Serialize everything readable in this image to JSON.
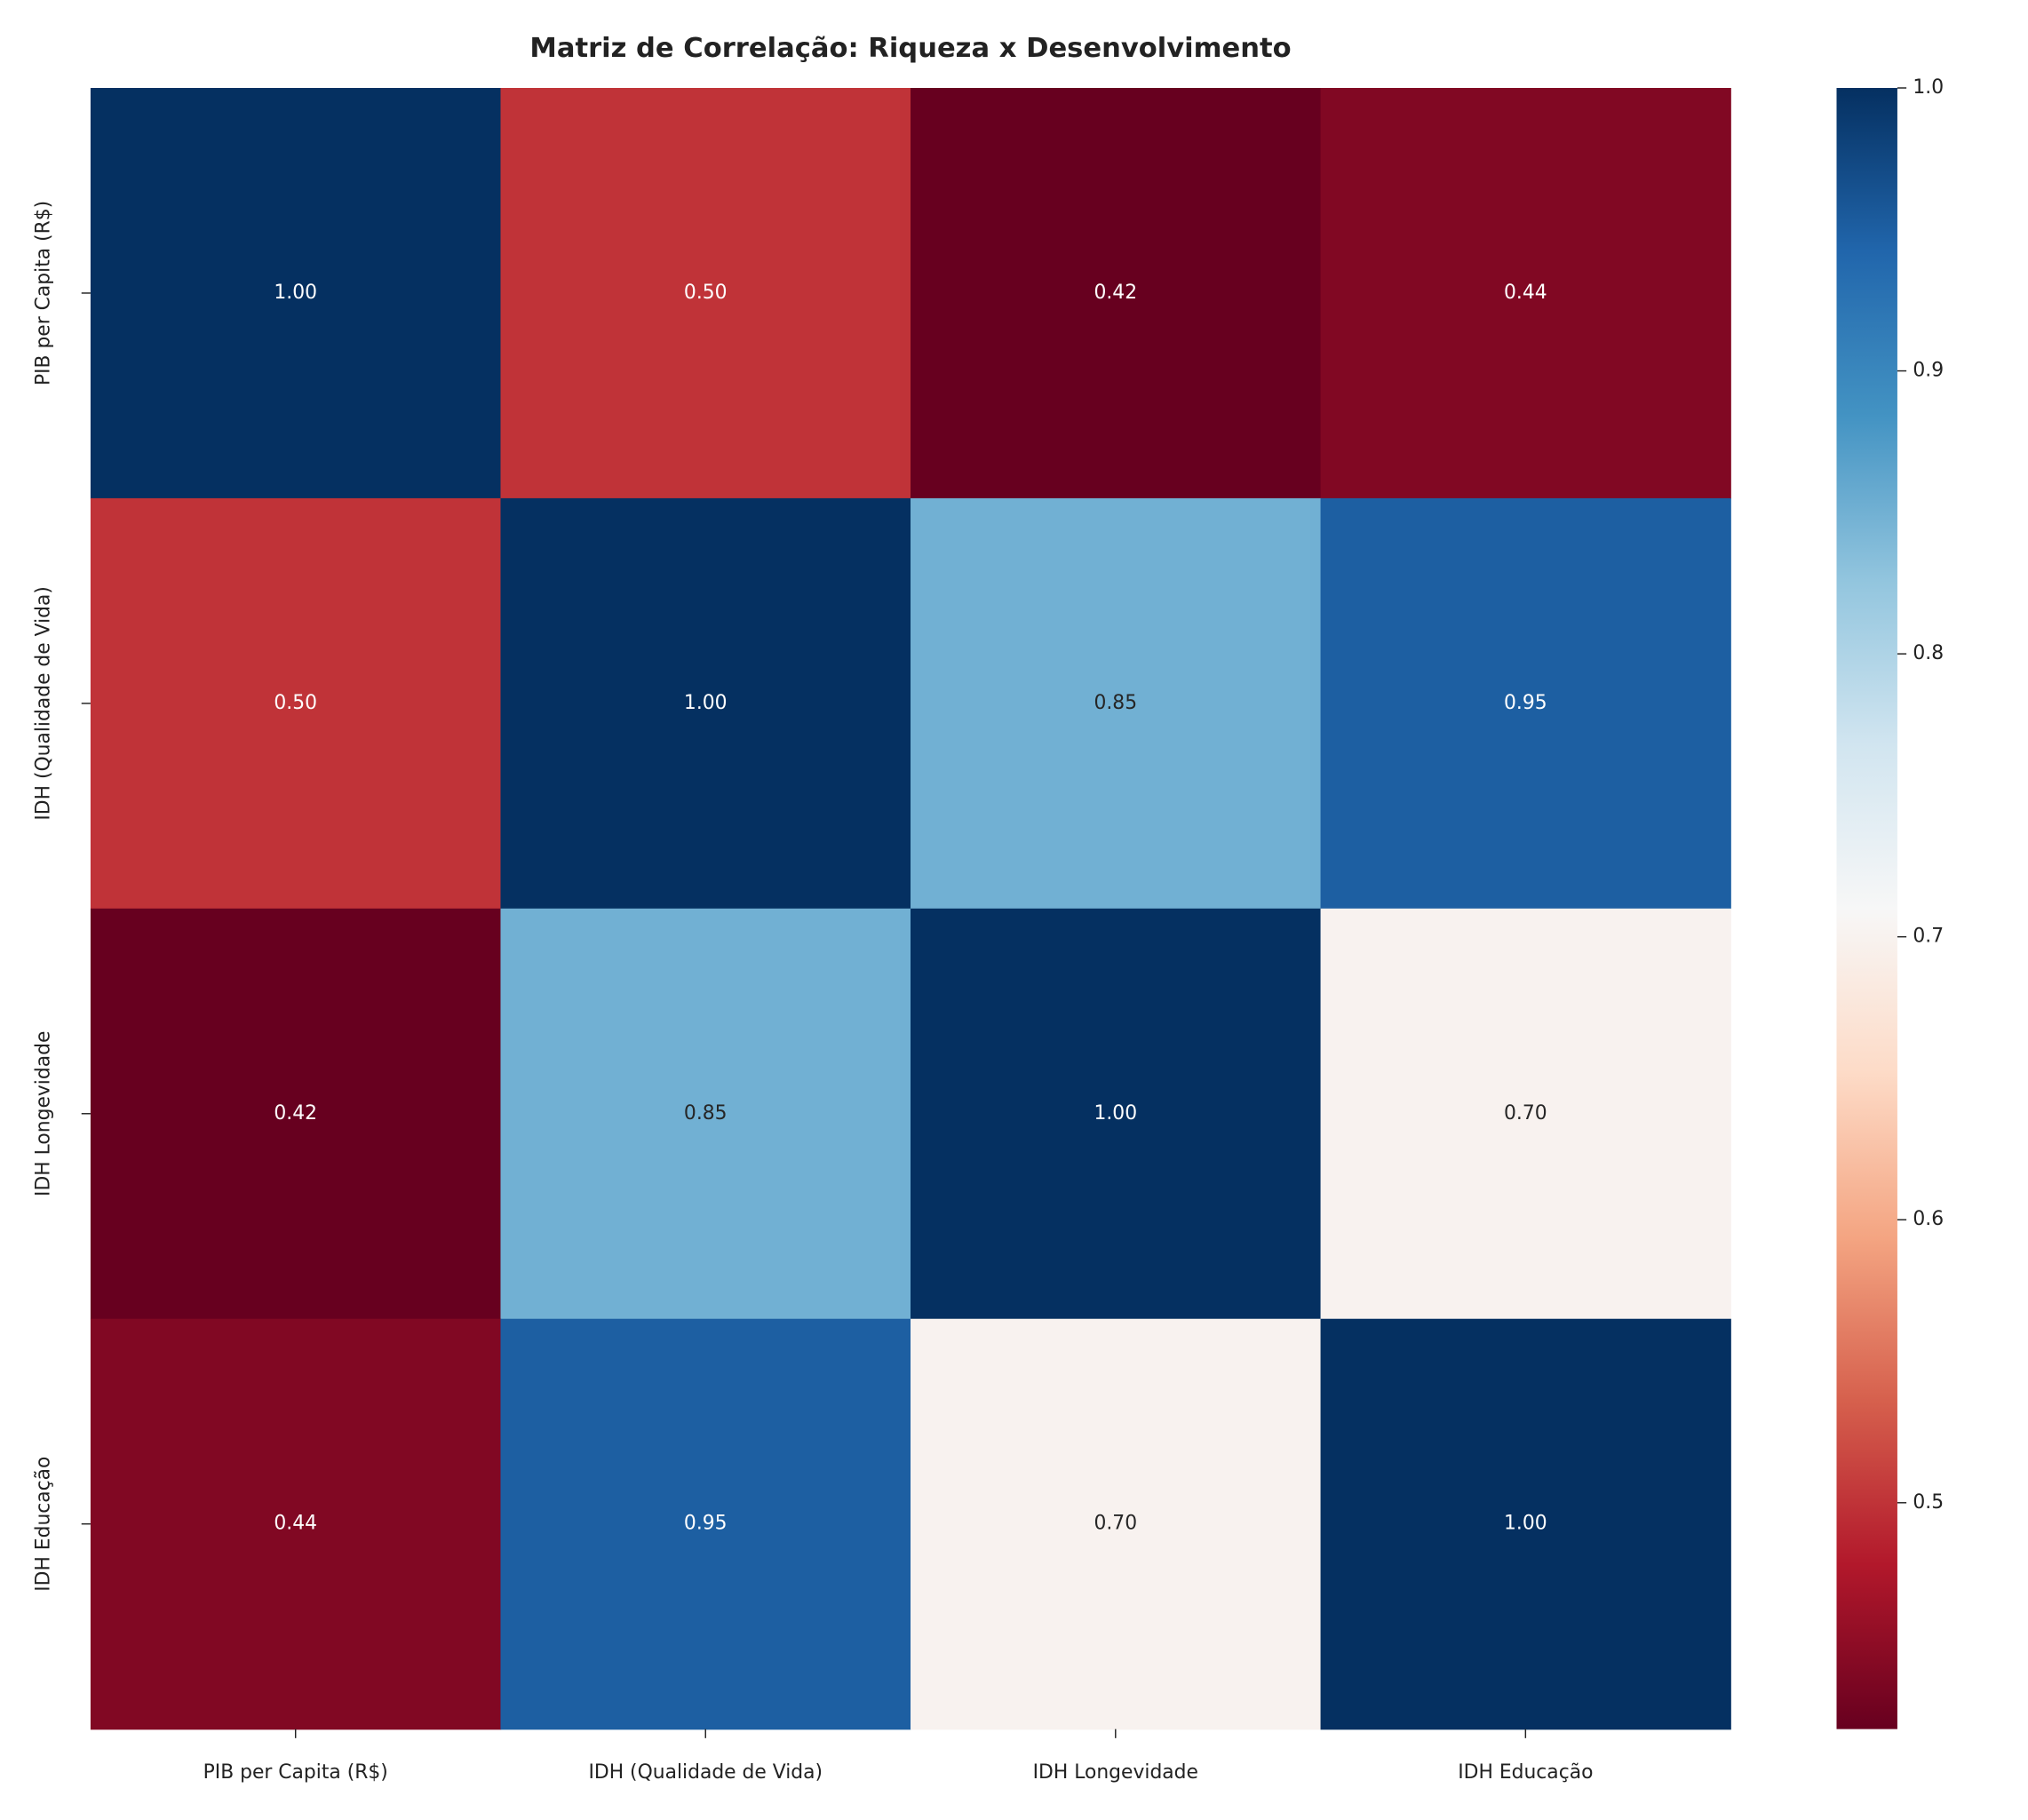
{
  "chart_data": {
    "type": "heatmap",
    "title": "Matriz de Correlação: Riqueza x Desenvolvimento",
    "x_categories": [
      "PIB per Capita (R$)",
      "IDH (Qualidade de Vida)",
      "IDH Longevidade",
      "IDH Educação"
    ],
    "y_categories": [
      "PIB per Capita (R$)",
      "IDH (Qualidade de Vida)",
      "IDH Longevidade",
      "IDH Educação"
    ],
    "values": [
      [
        1,
        0.5,
        0.42,
        0.44
      ],
      [
        0.5,
        1,
        0.85,
        0.95
      ],
      [
        0.42,
        0.85,
        1,
        0.7
      ],
      [
        0.44,
        0.95,
        0.7,
        1
      ]
    ],
    "value_labels": [
      [
        "1.00",
        "0.50",
        "0.42",
        "0.44"
      ],
      [
        "0.50",
        "1.00",
        "0.85",
        "0.95"
      ],
      [
        "0.42",
        "0.85",
        "1.00",
        "0.70"
      ],
      [
        "0.44",
        "0.95",
        "0.70",
        "1.00"
      ]
    ],
    "colormap": "RdBu",
    "clim": [
      0.42,
      1
    ],
    "cticks": [
      0.5,
      0.6,
      0.7,
      0.8,
      0.9,
      {
        "value": 1,
        "label": "1.0"
      }
    ]
  }
}
